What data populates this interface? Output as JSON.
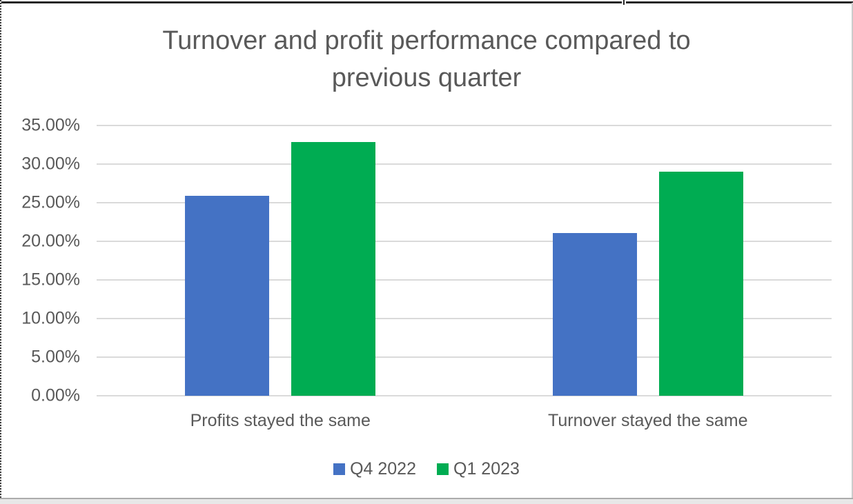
{
  "frame": {
    "top_border_color": "#262626",
    "top_notch_left_width": 901,
    "left_dash_dark": "#3d3d3d",
    "left_dash_light": "#e6e6e6",
    "right_border_color": "#cccccc",
    "bottom_line_color": "#ababab",
    "bottom_band_color": "#e8e8e8"
  },
  "chart_data": {
    "type": "bar",
    "title": "Turnover and profit performance compared to previous quarter",
    "title_lines": [
      "Turnover and profit performance compared to",
      "previous quarter"
    ],
    "categories": [
      "Profits stayed the same",
      "Turnover stayed the same"
    ],
    "series": [
      {
        "name": "Q4 2022",
        "color": "#4472C4",
        "values": [
          25.9,
          21.1
        ]
      },
      {
        "name": "Q1 2023",
        "color": "#00AC52",
        "values": [
          32.9,
          29.0
        ]
      }
    ],
    "xlabel": "",
    "ylabel": "",
    "ylim": [
      0,
      35
    ],
    "yticks": [
      0,
      5,
      10,
      15,
      20,
      25,
      30,
      35
    ],
    "ytick_labels": [
      "0.00%",
      "5.00%",
      "10.00%",
      "15.00%",
      "20.00%",
      "25.00%",
      "30.00%",
      "35.00%"
    ],
    "grid": true,
    "legend_position": "bottom",
    "colors": {
      "text": "#595959",
      "gridline": "#DADADA"
    }
  }
}
